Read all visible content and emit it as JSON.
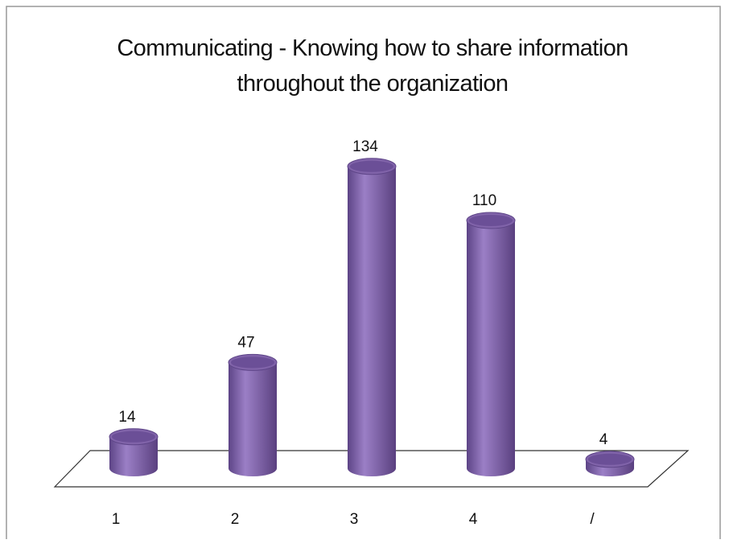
{
  "chart_data": {
    "type": "bar3d",
    "title": "Communicating - Knowing how to share information throughout the organization",
    "categories": [
      "1",
      "2",
      "3",
      "4",
      "/"
    ],
    "values": [
      14,
      47,
      134,
      110,
      4
    ],
    "color": "#8063a9"
  }
}
